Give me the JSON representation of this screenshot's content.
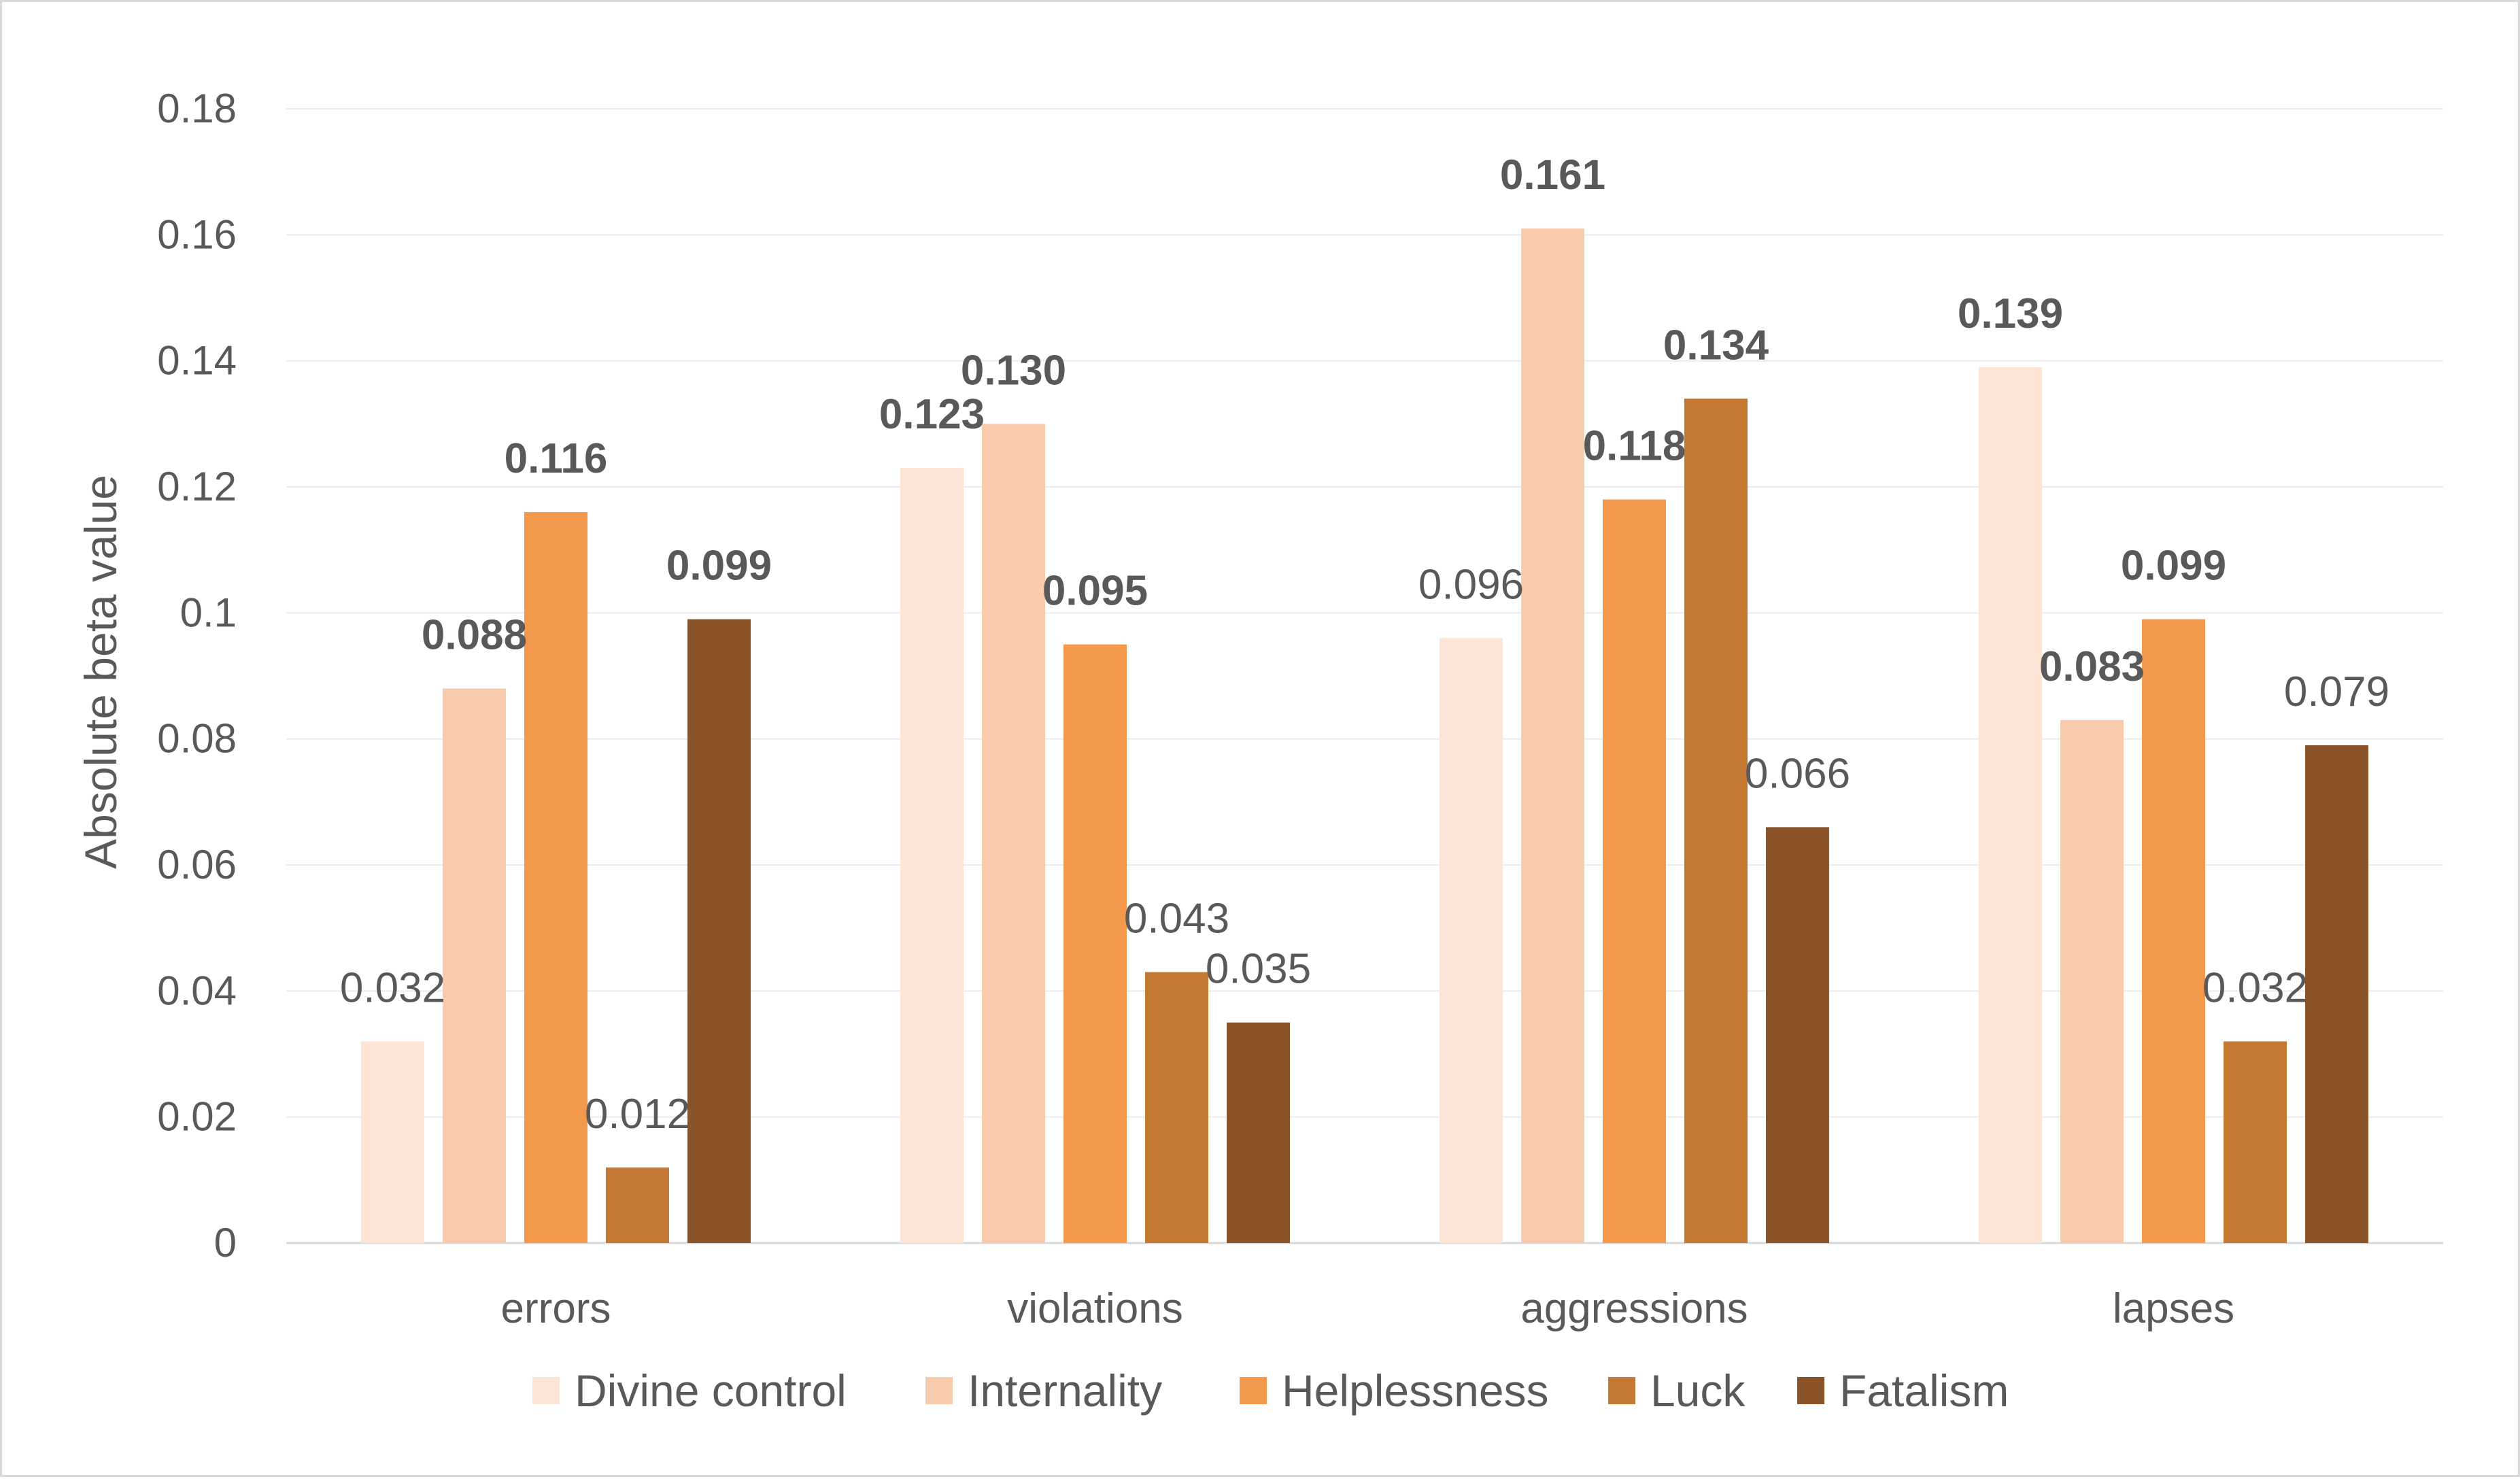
{
  "chart_data": {
    "type": "bar",
    "title": "",
    "xlabel": "",
    "ylabel": "Absolute beta value",
    "ylim": [
      0,
      0.18
    ],
    "yticks": [
      0,
      0.02,
      0.04,
      0.06,
      0.08,
      0.1,
      0.12,
      0.14,
      0.16,
      0.18
    ],
    "ytick_labels": [
      "0",
      "0.02",
      "0.04",
      "0.06",
      "0.08",
      "0.1",
      "0.12",
      "0.14",
      "0.16",
      "0.18"
    ],
    "categories": [
      "errors",
      "violations",
      "aggressions",
      "lapses"
    ],
    "grid": true,
    "legend_position": "bottom",
    "series": [
      {
        "name": "Divine control",
        "color": "#fce4d6",
        "values": [
          0.032,
          0.123,
          0.096,
          0.139
        ],
        "labels": [
          "0.032",
          "0.123",
          "0.096",
          "0.139"
        ],
        "bold": [
          false,
          true,
          false,
          true
        ]
      },
      {
        "name": "Internality",
        "color": "#f8cbad",
        "values": [
          0.088,
          0.13,
          0.161,
          0.083
        ],
        "labels": [
          "0.088",
          "0.130",
          "0.161",
          "0.083"
        ],
        "bold": [
          true,
          true,
          true,
          true
        ]
      },
      {
        "name": "Helplessness",
        "color": "#f4984b",
        "values": [
          0.116,
          0.095,
          0.118,
          0.099
        ],
        "labels": [
          "0.116",
          "0.095",
          "0.118",
          "0.099"
        ],
        "bold": [
          true,
          true,
          true,
          true
        ]
      },
      {
        "name": "Luck",
        "color": "#c37834",
        "values": [
          0.012,
          0.043,
          0.134,
          0.032
        ],
        "labels": [
          "0.012",
          "0.043",
          "0.134",
          "0.032"
        ],
        "bold": [
          false,
          false,
          true,
          false
        ]
      },
      {
        "name": "Fatalism",
        "color": "#8b5428",
        "values": [
          0.099,
          0.035,
          0.066,
          0.079
        ],
        "labels": [
          "0.099",
          "0.035",
          "0.066",
          "0.079"
        ],
        "bold": [
          true,
          false,
          false,
          false
        ]
      }
    ]
  }
}
